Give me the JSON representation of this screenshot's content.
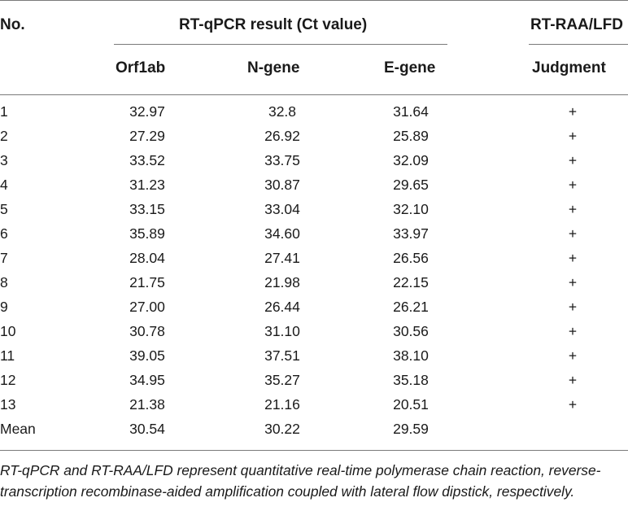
{
  "table": {
    "headers": {
      "no": "No.",
      "rtqpcr_group": "RT-qPCR result (Ct value)",
      "rtraa_group": "RT-RAA/LFD",
      "orf1ab": "Orf1ab",
      "ngene": "N-gene",
      "egene": "E-gene",
      "judgment": "Judgment"
    },
    "rows": [
      {
        "no": "1",
        "orf1ab": "32.97",
        "ngene": "32.8",
        "egene": "31.64",
        "judgment": "+"
      },
      {
        "no": "2",
        "orf1ab": "27.29",
        "ngene": "26.92",
        "egene": "25.89",
        "judgment": "+"
      },
      {
        "no": "3",
        "orf1ab": "33.52",
        "ngene": "33.75",
        "egene": "32.09",
        "judgment": "+"
      },
      {
        "no": "4",
        "orf1ab": "31.23",
        "ngene": "30.87",
        "egene": "29.65",
        "judgment": "+"
      },
      {
        "no": "5",
        "orf1ab": "33.15",
        "ngene": "33.04",
        "egene": "32.10",
        "judgment": "+"
      },
      {
        "no": "6",
        "orf1ab": "35.89",
        "ngene": "34.60",
        "egene": "33.97",
        "judgment": "+"
      },
      {
        "no": "7",
        "orf1ab": "28.04",
        "ngene": "27.41",
        "egene": "26.56",
        "judgment": "+"
      },
      {
        "no": "8",
        "orf1ab": "21.75",
        "ngene": "21.98",
        "egene": "22.15",
        "judgment": "+"
      },
      {
        "no": "9",
        "orf1ab": "27.00",
        "ngene": "26.44",
        "egene": "26.21",
        "judgment": "+"
      },
      {
        "no": "10",
        "orf1ab": "30.78",
        "ngene": "31.10",
        "egene": "30.56",
        "judgment": "+"
      },
      {
        "no": "11",
        "orf1ab": "39.05",
        "ngene": "37.51",
        "egene": "38.10",
        "judgment": "+"
      },
      {
        "no": "12",
        "orf1ab": "34.95",
        "ngene": "35.27",
        "egene": "35.18",
        "judgment": "+"
      },
      {
        "no": "13",
        "orf1ab": "21.38",
        "ngene": "21.16",
        "egene": "20.51",
        "judgment": "+"
      },
      {
        "no": "Mean",
        "orf1ab": "30.54",
        "ngene": "30.22",
        "egene": "29.59",
        "judgment": ""
      }
    ]
  },
  "footnote": "RT-qPCR and RT-RAA/LFD represent quantitative real-time polymerase chain reaction, reverse-transcription recombinase-aided amplification coupled with lateral flow dipstick, respectively."
}
